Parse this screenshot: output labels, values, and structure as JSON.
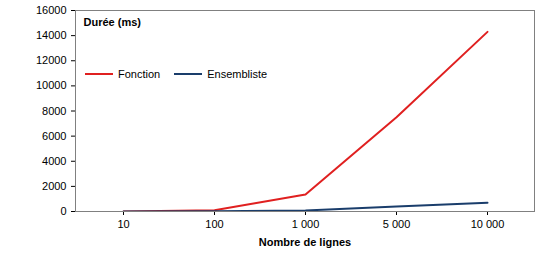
{
  "chart_data": {
    "type": "line",
    "title": "Durée (ms)",
    "x_label": "Nombre de lignes",
    "categories": [
      "10",
      "100",
      "1 000",
      "5 000",
      "10 000"
    ],
    "series": [
      {
        "name": "Fonction",
        "color": "#e02020",
        "values": [
          0,
          100,
          1350,
          7500,
          14300
        ]
      },
      {
        "name": "Ensembliste",
        "color": "#1a3d6b",
        "values": [
          0,
          10,
          80,
          400,
          700
        ]
      }
    ],
    "ylim": [
      0,
      16000
    ],
    "yticks": [
      0,
      2000,
      4000,
      6000,
      8000,
      10000,
      12000,
      14000,
      16000
    ],
    "grid": false,
    "legend": "top-left"
  }
}
